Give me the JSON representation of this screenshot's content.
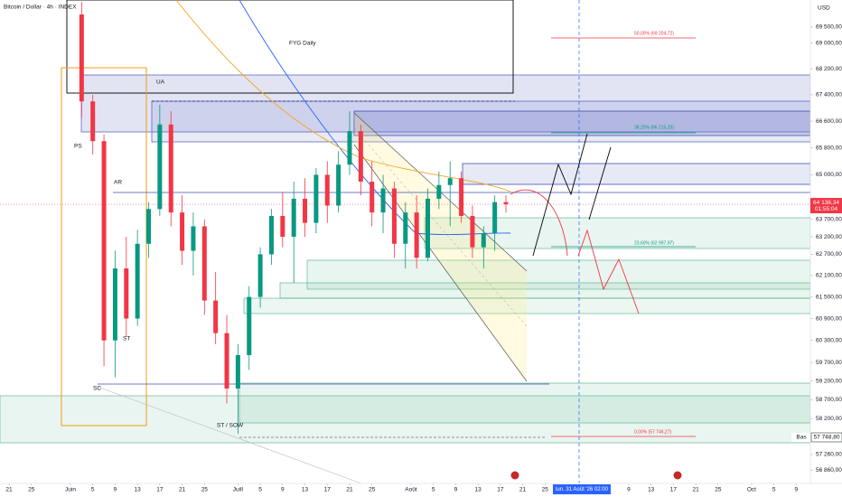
{
  "chart_data": {
    "type": "candlestick",
    "title": "Bitcoin / Dollar · 4h · INDEX",
    "currency": "USD",
    "log_scale": true,
    "grid": false,
    "up_color": "#089981",
    "down_color": "#f23645",
    "x": [
      13,
      15,
      17,
      19,
      21,
      23,
      25,
      27,
      29,
      31,
      33,
      35,
      37,
      39,
      41,
      43,
      45,
      47,
      49,
      51,
      53,
      55,
      57,
      59,
      61,
      63,
      65,
      67,
      69,
      71,
      73,
      75,
      77,
      79,
      81,
      83,
      85,
      87,
      89
    ],
    "open": [
      69900,
      67200,
      66000,
      60300,
      62300,
      60900,
      63000,
      64000,
      66500,
      63900,
      62800,
      63500,
      61400,
      60500,
      59000,
      59900,
      61500,
      62700,
      63800,
      63200,
      64300,
      63600,
      65000,
      64100,
      65300,
      66300,
      64800,
      63900,
      64600,
      63000,
      63900,
      62600,
      64300,
      64700,
      64900,
      63800,
      62900,
      63300,
      64200
    ],
    "high": [
      70300,
      67400,
      66200,
      62800,
      63200,
      63400,
      64200,
      67100,
      66900,
      64400,
      63900,
      63700,
      62200,
      61000,
      60200,
      61800,
      62900,
      64000,
      64500,
      64800,
      64900,
      65200,
      65400,
      65700,
      66900,
      66500,
      65400,
      65000,
      64800,
      64200,
      64400,
      64600,
      65100,
      65400,
      65100,
      64100,
      63500,
      64400,
      64400
    ],
    "low": [
      66700,
      65600,
      59600,
      59300,
      60400,
      60700,
      62600,
      63800,
      63500,
      62400,
      62100,
      61000,
      60200,
      58600,
      57800,
      59500,
      61200,
      62400,
      62900,
      61900,
      63200,
      63300,
      63600,
      63900,
      65000,
      64400,
      63500,
      63300,
      62600,
      62300,
      62300,
      62500,
      64000,
      63500,
      63600,
      62600,
      62300,
      62800,
      63900
    ],
    "close": [
      67200,
      66000,
      60300,
      62300,
      60900,
      63000,
      64000,
      66500,
      63900,
      62800,
      63500,
      61400,
      60500,
      59000,
      59900,
      61500,
      62700,
      63800,
      63200,
      64300,
      63600,
      65000,
      64100,
      65300,
      66300,
      64800,
      63900,
      64600,
      63000,
      63900,
      62600,
      64300,
      64700,
      64900,
      63800,
      62900,
      63300,
      64200,
      64138.34
    ],
    "xlim": [
      -1.62,
      143.53
    ],
    "ylim": [
      56515,
      70360
    ],
    "xticks": [
      {
        "value": 0,
        "label": "21"
      },
      {
        "value": 4,
        "label": "25"
      },
      {
        "value": 11,
        "label": "Juin"
      },
      {
        "value": 15,
        "label": "5"
      },
      {
        "value": 19,
        "label": "9"
      },
      {
        "value": 23,
        "label": "13"
      },
      {
        "value": 27,
        "label": "17"
      },
      {
        "value": 31,
        "label": "21"
      },
      {
        "value": 35,
        "label": "25"
      },
      {
        "value": 41,
        "label": "Juill"
      },
      {
        "value": 45,
        "label": "5"
      },
      {
        "value": 49,
        "label": "9"
      },
      {
        "value": 53,
        "label": "13"
      },
      {
        "value": 57,
        "label": "17"
      },
      {
        "value": 61,
        "label": "21"
      },
      {
        "value": 65,
        "label": "25"
      },
      {
        "value": 72,
        "label": "Août"
      },
      {
        "value": 76,
        "label": "5"
      },
      {
        "value": 80,
        "label": "9"
      },
      {
        "value": 84,
        "label": "13"
      },
      {
        "value": 88,
        "label": "17"
      },
      {
        "value": 92,
        "label": "21"
      },
      {
        "value": 96,
        "label": "25"
      },
      {
        "value": 111,
        "label": "9"
      },
      {
        "value": 115,
        "label": "13"
      },
      {
        "value": 119,
        "label": "17"
      },
      {
        "value": 123,
        "label": "21"
      },
      {
        "value": 127,
        "label": "25"
      },
      {
        "value": 133,
        "label": "Oct"
      },
      {
        "value": 137,
        "label": "5"
      },
      {
        "value": 141,
        "label": "9"
      }
    ],
    "yticks": [
      {
        "value": 69500,
        "label": "69 500,00"
      },
      {
        "value": 69000,
        "label": "69 000,00"
      },
      {
        "value": 68200,
        "label": "68 200,00"
      },
      {
        "value": 67400,
        "label": "67 400,00"
      },
      {
        "value": 66600,
        "label": "66 600,00"
      },
      {
        "value": 65800,
        "label": "65 800,00"
      },
      {
        "value": 65000,
        "label": "65 000,00"
      },
      {
        "value": 63700,
        "label": "63 700,00"
      },
      {
        "value": 63200,
        "label": "63 200,00"
      },
      {
        "value": 62700,
        "label": "62 700,00"
      },
      {
        "value": 62100,
        "label": "62 100,00"
      },
      {
        "value": 61500,
        "label": "61 500,00"
      },
      {
        "value": 60900,
        "label": "60 900,00"
      },
      {
        "value": 60300,
        "label": "60 300,00"
      },
      {
        "value": 59700,
        "label": "59 700,00"
      },
      {
        "value": 59200,
        "label": "59 200,00"
      },
      {
        "value": 58700,
        "label": "58 700,00"
      },
      {
        "value": 58200,
        "label": "58 200,00"
      },
      {
        "value": 57260,
        "label": "57 260,00"
      },
      {
        "value": 56860,
        "label": "56 860,00"
      }
    ],
    "last_price_label": "64 138,34",
    "countdown": "01:55:04",
    "low_marker": "Bas",
    "low_price_label": "57 748,80",
    "crosshair_label": "lun. 31 Août '26  02:00",
    "annotations": [
      "FYG Daily",
      "UA",
      "PS",
      "AR",
      "ST",
      "SC",
      "ST / SOW"
    ],
    "fib_labels": [
      "50,00% (69 204,72)",
      "38,20% (66 215,20)",
      "23,60% (62 997,97)",
      "0,00% (57 746,27)"
    ]
  }
}
